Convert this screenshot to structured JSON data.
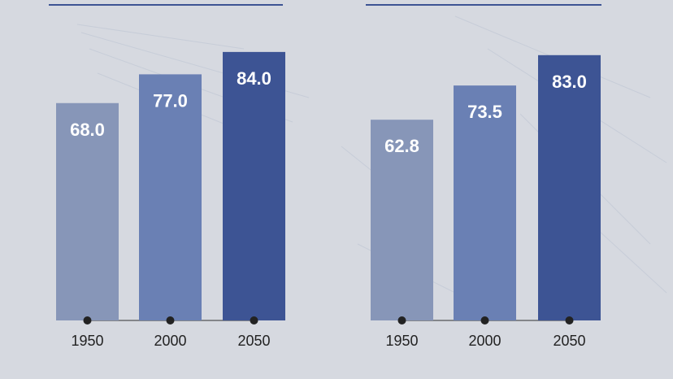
{
  "chart_data": [
    {
      "type": "bar",
      "categories": [
        "1950",
        "2000",
        "2050"
      ],
      "values": [
        68,
        77,
        84
      ],
      "value_labels": [
        "68.0",
        "77.0",
        "84.0"
      ],
      "colors": [
        "#8796b8",
        "#6a80b4",
        "#3d5494"
      ]
    },
    {
      "type": "bar",
      "categories": [
        "1950",
        "2000",
        "2050"
      ],
      "values": [
        62.8,
        73.5,
        83
      ],
      "value_labels": [
        "62.8",
        "73.5",
        "83.0"
      ],
      "colors": [
        "#8796b8",
        "#6a80b4",
        "#3d5494"
      ]
    }
  ]
}
